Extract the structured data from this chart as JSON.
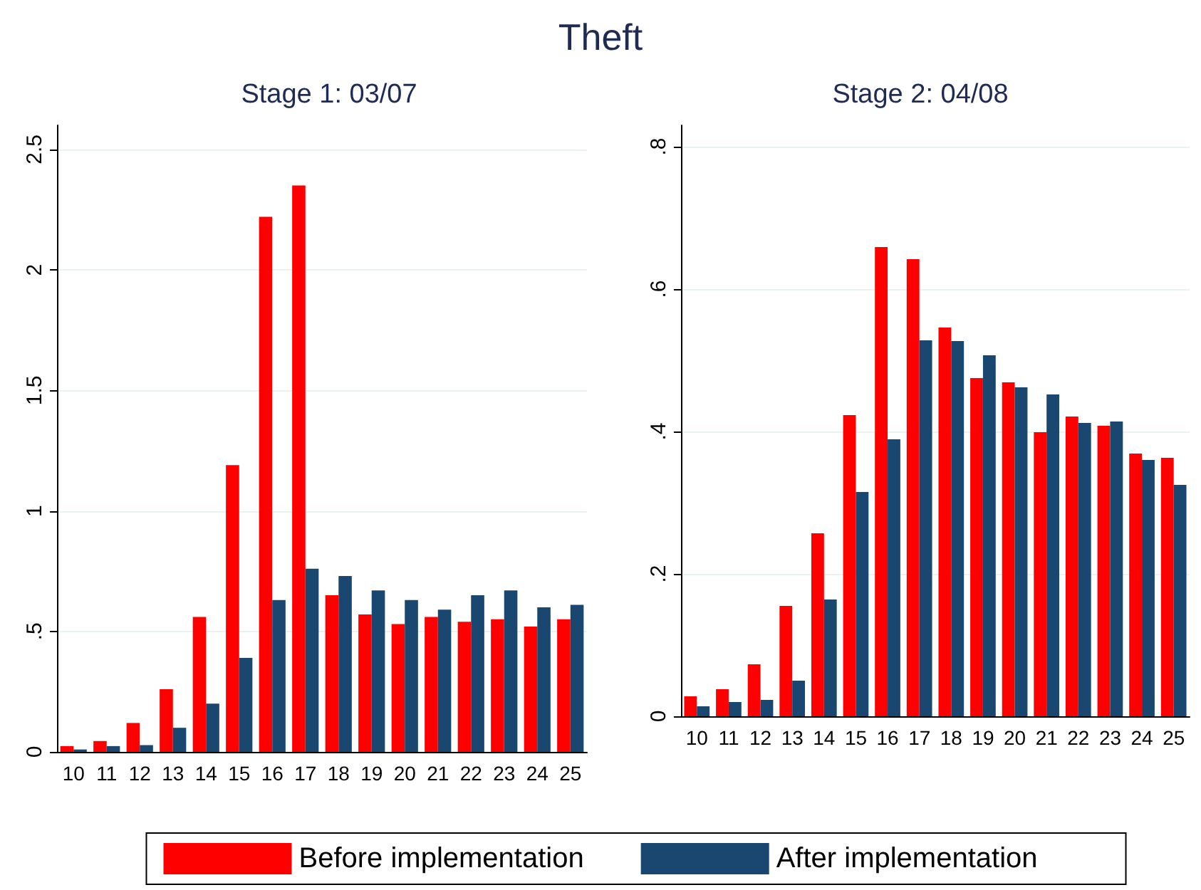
{
  "chart_data": [
    {
      "type": "bar",
      "title": "Theft",
      "subtitle": "Stage 1: 03/07",
      "categories": [
        "10",
        "11",
        "12",
        "13",
        "14",
        "15",
        "16",
        "17",
        "18",
        "19",
        "20",
        "21",
        "22",
        "23",
        "24",
        "25"
      ],
      "series": [
        {
          "name": "Before implementation",
          "color": "#ff0000",
          "values": [
            0.024,
            0.045,
            0.12,
            0.26,
            0.56,
            1.19,
            2.22,
            2.35,
            0.65,
            0.57,
            0.53,
            0.56,
            0.54,
            0.55,
            0.52,
            0.55
          ]
        },
        {
          "name": "After implementation",
          "color": "#1a476f",
          "values": [
            0.01,
            0.024,
            0.028,
            0.1,
            0.2,
            0.39,
            0.63,
            0.76,
            0.73,
            0.67,
            0.63,
            0.59,
            0.65,
            0.67,
            0.6,
            0.61
          ]
        }
      ],
      "ylim": [
        0,
        2.6
      ],
      "yticks": [
        0,
        {
          "value": 0.5,
          "label": ".5"
        },
        1,
        1.5,
        2,
        2.5
      ],
      "grid": "y",
      "legend": "bottom"
    },
    {
      "type": "bar",
      "subtitle": "Stage 2: 04/08",
      "categories": [
        "10",
        "11",
        "12",
        "13",
        "14",
        "15",
        "16",
        "17",
        "18",
        "19",
        "20",
        "21",
        "22",
        "23",
        "24",
        "25"
      ],
      "series": [
        {
          "color": "#ff0000",
          "values": [
            0.028,
            0.038,
            0.073,
            0.155,
            0.257,
            0.423,
            0.659,
            0.642,
            0.546,
            0.475,
            0.469,
            0.399,
            0.421,
            0.408,
            0.369,
            0.363
          ]
        },
        {
          "color": "#1a476f",
          "values": [
            0.014,
            0.02,
            0.023,
            0.05,
            0.164,
            0.315,
            0.389,
            0.528,
            0.527,
            0.507,
            0.462,
            0.452,
            0.412,
            0.414,
            0.36,
            0.325
          ]
        }
      ],
      "ylim": [
        0,
        0.83
      ],
      "yticks": [
        0,
        {
          "value": 0.2,
          "label": ".2"
        },
        {
          "value": 0.4,
          "label": ".4"
        },
        {
          "value": 0.6,
          "label": ".6"
        },
        {
          "value": 0.8,
          "label": ".8"
        }
      ],
      "grid": "y"
    }
  ]
}
